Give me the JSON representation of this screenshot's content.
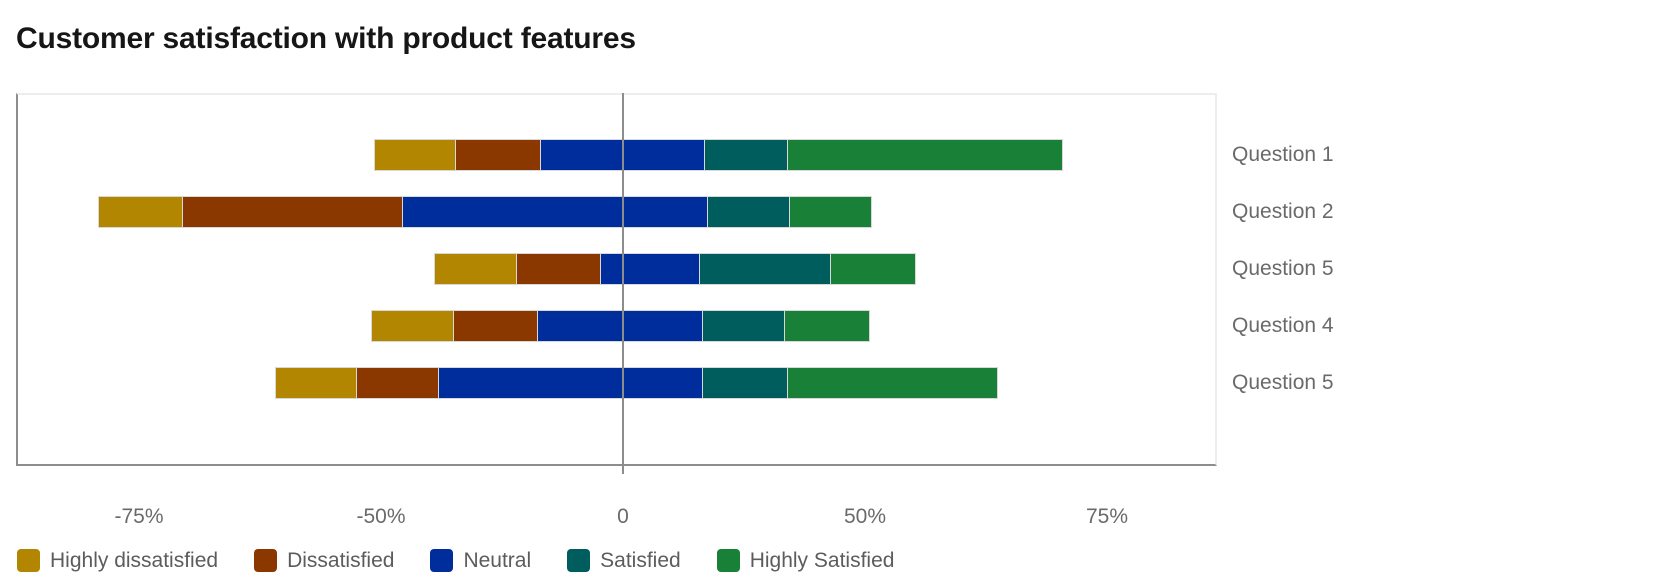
{
  "title": "Customer satisfaction with product features",
  "chart_data": {
    "type": "bar",
    "subtype": "horizontal-diverging-stacked",
    "title": "Customer satisfaction with product features",
    "orientation": "horizontal",
    "grid": false,
    "legend_position": "bottom",
    "categories": [
      "Question 1",
      "Question 2",
      "Question 5",
      "Question 4",
      "Question 5"
    ],
    "series": [
      {
        "name": "Highly dissatisfied",
        "color": "#b28600",
        "values": [
          17,
          17.5,
          17,
          17,
          17
        ]
      },
      {
        "name": "Dissatisfied",
        "color": "#8a3800",
        "values": [
          17.5,
          45.5,
          17.5,
          17.5,
          17
        ]
      },
      {
        "name": "Neutral",
        "color": "#002d9c",
        "values": [
          34,
          63,
          20.5,
          34,
          54.5
        ],
        "left_of_zero": [
          17,
          45.5,
          4.5,
          17.5,
          38
        ]
      },
      {
        "name": "Satisfied",
        "color": "#005d5d",
        "values": [
          17,
          17,
          27,
          17,
          17.5
        ]
      },
      {
        "name": "Highly Satisfied",
        "color": "#198038",
        "values": [
          57,
          17,
          17.5,
          17.5,
          43.5
        ]
      }
    ],
    "x_axis": {
      "ticks": [
        {
          "label": "-75%",
          "position": -100
        },
        {
          "label": "-50%",
          "position": -50
        },
        {
          "label": "0",
          "position": 0
        },
        {
          "label": "50%",
          "position": 50
        },
        {
          "label": "75%",
          "position": 100
        }
      ]
    }
  },
  "legend": {
    "items": [
      {
        "label": "Highly dissatisfied",
        "color": "#b28600"
      },
      {
        "label": "Dissatisfied",
        "color": "#8a3800"
      },
      {
        "label": "Neutral",
        "color": "#002d9c"
      },
      {
        "label": "Satisfied",
        "color": "#005d5d"
      },
      {
        "label": "Highly Satisfied",
        "color": "#198038"
      }
    ]
  },
  "styles": {
    "axis_line_color": "#8d8d8d",
    "zero_line_color": "#8d8d8d",
    "label_color": "#6a6a6a",
    "title_color": "#161616"
  }
}
